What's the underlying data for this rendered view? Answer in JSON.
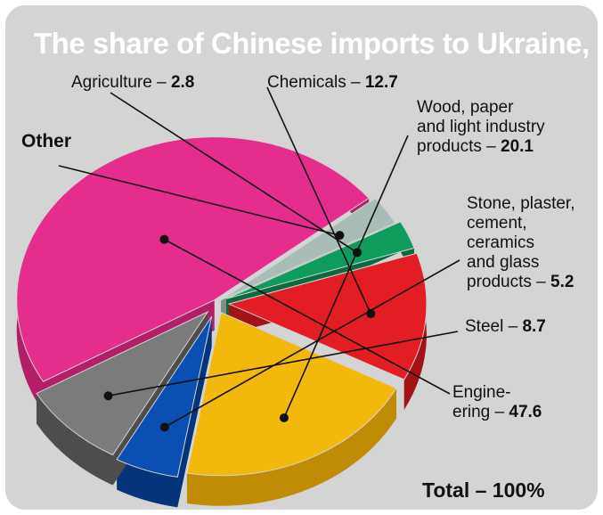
{
  "chart_data": {
    "type": "pie",
    "title": "The share of Chinese imports to Ukraine, %",
    "slices": [
      {
        "name": "Engine-\nering",
        "label": "Engine-ering",
        "value": 47.6,
        "color": "#e42d8c",
        "side": "#b21f68"
      },
      {
        "name": "Other",
        "label": "Other",
        "value": 2.9,
        "color": "#a9bcb8",
        "side": "#7f8f8b"
      },
      {
        "name": "Agriculture",
        "label": "Agriculture",
        "value": 2.8,
        "color": "#0f9b5c",
        "side": "#0a6b40"
      },
      {
        "name": "Chemicals",
        "label": "Chemicals",
        "value": 12.7,
        "color": "#e21d24",
        "side": "#a21318"
      },
      {
        "name": "Wood, paper and light industry products",
        "label": "Wood, paper and light industry products",
        "value": 20.1,
        "color": "#f2b80c",
        "side": "#c08c05"
      },
      {
        "name": "Stone, plaster, cement, ceramics and glass products",
        "label": "Stone, plaster, cement, ceramics and glass products",
        "value": 5.2,
        "color": "#0b4fb3",
        "side": "#06347a"
      },
      {
        "name": "Steel",
        "label": "Steel",
        "value": 8.7,
        "color": "#7b7b7b",
        "side": "#4d4d4d"
      }
    ],
    "total": "Total  – 100%"
  },
  "labels": {
    "agriculture_name": "Agriculture – ",
    "agriculture_value": "2.8",
    "chemicals_name": "Chemicals – ",
    "chemicals_value": "12.7",
    "other": "Other",
    "wood_line1": "Wood, paper",
    "wood_line2": "and light industry",
    "wood_line3": "products – ",
    "wood_value": "20.1",
    "stone_line1": "Stone, plaster,",
    "stone_line2": "cement,",
    "stone_line3": "ceramics",
    "stone_line4": "and glass",
    "stone_line5": "products – ",
    "stone_value": "5.2",
    "steel_name": "Steel – ",
    "steel_value": "8.7",
    "eng_line1": "Engine-",
    "eng_line2": "ering – ",
    "eng_value": "47.6"
  }
}
